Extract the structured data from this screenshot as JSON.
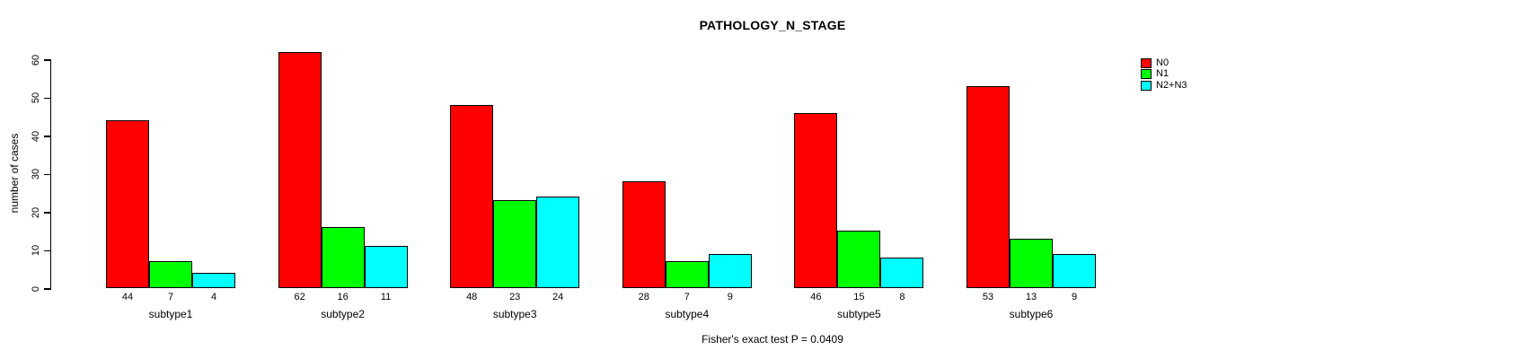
{
  "chart_data": {
    "type": "bar",
    "title": "PATHOLOGY_N_STAGE",
    "ylabel": "number of cases",
    "xlabel": "",
    "categories": [
      "subtype1",
      "subtype2",
      "subtype3",
      "subtype4",
      "subtype5",
      "subtype6"
    ],
    "series": [
      {
        "name": "N0",
        "color": "#ff0000",
        "values": [
          44,
          62,
          48,
          28,
          46,
          53
        ]
      },
      {
        "name": "N1",
        "color": "#00ff00",
        "values": [
          7,
          16,
          23,
          7,
          15,
          13
        ]
      },
      {
        "name": "N2+N3",
        "color": "#00ffff",
        "values": [
          4,
          11,
          24,
          9,
          8,
          9
        ]
      }
    ],
    "ylim": [
      0,
      60
    ],
    "ytick_step": 10,
    "ytick_labels": [
      "0",
      "10",
      "20",
      "30",
      "40",
      "50",
      "60"
    ],
    "bar_value_labels_shown": true,
    "grid": false,
    "legend_position": "top-right",
    "annotation": "Fisher's exact test P = 0.0409"
  }
}
